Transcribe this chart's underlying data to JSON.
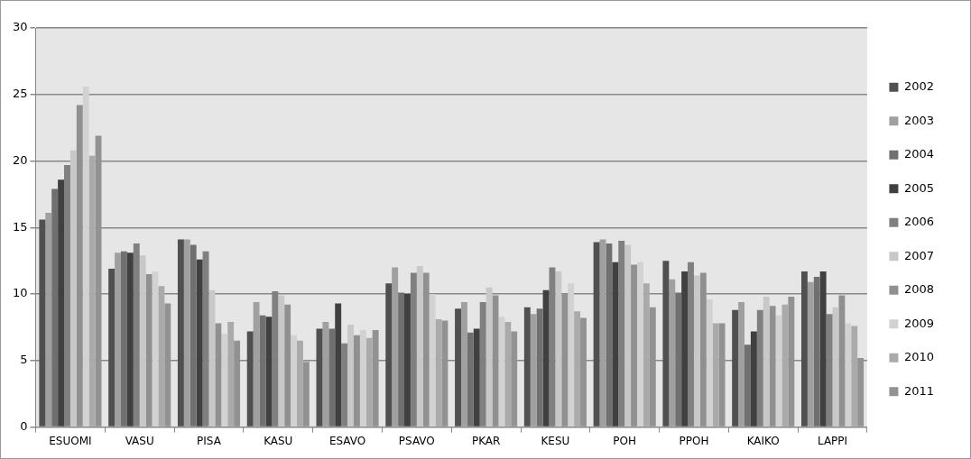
{
  "chart_data": {
    "type": "bar",
    "categories": [
      "ESUOMI",
      "VASU",
      "PISA",
      "KASU",
      "ESAVO",
      "PSAVO",
      "PKAR",
      "KESU",
      "POH",
      "PPOH",
      "KAIKO",
      "LAPPI"
    ],
    "series": [
      {
        "name": "2002",
        "color": "#505050",
        "values": [
          15.6,
          11.9,
          14.1,
          7.2,
          7.4,
          10.8,
          8.9,
          9.0,
          13.9,
          12.5,
          8.8,
          11.7
        ]
      },
      {
        "name": "2003",
        "color": "#a0a0a0",
        "values": [
          16.1,
          13.1,
          14.1,
          9.4,
          7.9,
          12.0,
          9.4,
          8.5,
          14.1,
          11.1,
          9.4,
          10.9
        ]
      },
      {
        "name": "2004",
        "color": "#707070",
        "values": [
          17.9,
          13.2,
          13.7,
          8.4,
          7.4,
          10.1,
          7.1,
          8.9,
          13.8,
          10.1,
          6.2,
          11.3
        ]
      },
      {
        "name": "2005",
        "color": "#404040",
        "values": [
          18.6,
          13.1,
          12.6,
          8.3,
          9.3,
          10.0,
          7.4,
          10.3,
          12.4,
          11.7,
          7.2,
          11.7
        ]
      },
      {
        "name": "2006",
        "color": "#808080",
        "values": [
          19.7,
          13.8,
          13.2,
          10.2,
          6.3,
          11.6,
          9.4,
          12.0,
          14.0,
          12.4,
          8.8,
          8.5
        ]
      },
      {
        "name": "2007",
        "color": "#c8c8c8",
        "values": [
          20.8,
          12.9,
          10.3,
          9.9,
          7.7,
          12.1,
          10.5,
          11.7,
          13.7,
          11.4,
          9.8,
          9.0
        ]
      },
      {
        "name": "2008",
        "color": "#909090",
        "values": [
          24.2,
          11.5,
          7.8,
          9.2,
          6.9,
          11.6,
          9.9,
          10.0,
          12.2,
          11.6,
          9.1,
          9.9
        ]
      },
      {
        "name": "2009",
        "color": "#d2d2d2",
        "values": [
          25.6,
          11.7,
          7.0,
          6.9,
          7.3,
          10.0,
          8.3,
          10.8,
          12.4,
          9.6,
          8.4,
          7.8
        ]
      },
      {
        "name": "2010",
        "color": "#aaaaaa",
        "values": [
          20.4,
          10.6,
          7.9,
          6.5,
          6.7,
          8.1,
          7.9,
          8.7,
          10.8,
          7.8,
          9.2,
          7.6
        ]
      },
      {
        "name": "2011",
        "color": "#929292",
        "values": [
          21.9,
          9.3,
          6.5,
          4.9,
          7.3,
          8.0,
          7.2,
          8.2,
          9.0,
          7.8,
          9.8,
          5.2
        ]
      }
    ],
    "ylim": [
      0,
      30
    ],
    "yticks": [
      0,
      5,
      10,
      15,
      20,
      25,
      30
    ],
    "grid": "y",
    "legend": "right"
  }
}
